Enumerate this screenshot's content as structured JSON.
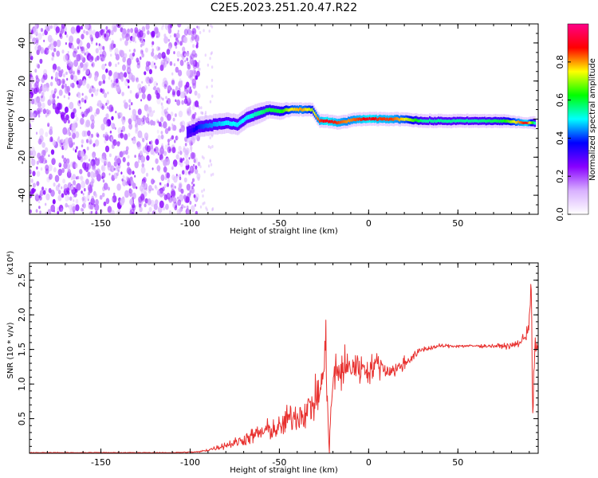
{
  "title": "C2E5.2023.251.20.47.R22",
  "chart_data": [
    {
      "type": "heatmap",
      "xlabel": "Height of straight line (km)",
      "ylabel": "Frequency (Hz)",
      "xlim": [
        -190,
        95
      ],
      "ylim": [
        -50,
        50
      ],
      "xticks": [
        -150,
        -100,
        -50,
        0,
        50
      ],
      "yticks": [
        -40,
        -20,
        0,
        20,
        40
      ],
      "colorbar": {
        "label": "Normalized spectral amplitude",
        "range": [
          0,
          1
        ],
        "ticks": [
          "0.0",
          "0.2",
          "0.4",
          "0.6",
          "0.8"
        ],
        "colormap": [
          "#ffffff",
          "#d8b0ff",
          "#8800ff",
          "#0000ff",
          "#00ffff",
          "#00ff00",
          "#ffff00",
          "#ff0000",
          "#ff0088"
        ]
      },
      "noise_region_x": [
        -190,
        -95
      ],
      "ridge": {
        "x": [
          -102,
          -95,
          -88,
          -80,
          -74,
          -68,
          -62,
          -56,
          -50,
          -44,
          -38,
          -32,
          -28,
          -24,
          -18,
          -12,
          -6,
          0,
          6,
          12,
          20,
          30,
          45,
          60,
          75,
          88,
          93
        ],
        "y": [
          -7,
          -4,
          -3,
          -2,
          -3,
          1,
          3,
          5,
          4,
          5,
          5,
          5,
          -1,
          -1,
          -2,
          -1,
          0,
          0,
          0,
          0,
          0,
          -1,
          -1,
          -1,
          -1,
          -2,
          -2
        ],
        "amp": [
          0.3,
          0.4,
          0.45,
          0.5,
          0.5,
          0.5,
          0.55,
          0.6,
          0.6,
          0.75,
          0.8,
          0.7,
          0.85,
          0.9,
          0.85,
          0.8,
          0.85,
          0.9,
          0.85,
          0.85,
          0.75,
          0.55,
          0.55,
          0.55,
          0.6,
          0.9,
          0.5
        ],
        "width": [
          3,
          3,
          3,
          3,
          3,
          3,
          3,
          2.5,
          2.5,
          2,
          2,
          2,
          2,
          2,
          2,
          2,
          2,
          2,
          2,
          2,
          2,
          2,
          2,
          2,
          2,
          1.6,
          2
        ]
      }
    },
    {
      "type": "line",
      "xlabel": "Height of straight line (km)",
      "ylabel": "SNR (10 * v/v)",
      "y_multiplier": "(x10⁴)",
      "xlim": [
        -190,
        95
      ],
      "ylim": [
        0,
        2.75
      ],
      "xticks": [
        -150,
        -100,
        -50,
        0,
        50
      ],
      "yticks": [
        0.5,
        1.0,
        1.5,
        2.0,
        2.5
      ],
      "series": [
        {
          "color": "#e8312f",
          "x": [
            -190,
            -140,
            -110,
            -95,
            -90,
            -85,
            -80,
            -75,
            -70,
            -65,
            -60,
            -55,
            -50,
            -45,
            -40,
            -35,
            -30,
            -26,
            -24,
            -22,
            -20,
            -15,
            -10,
            -5,
            0,
            5,
            10,
            15,
            20,
            25,
            30,
            40,
            50,
            60,
            70,
            80,
            85,
            88,
            90,
            91,
            92,
            93,
            94,
            95
          ],
          "y": [
            0.0,
            0.0,
            0.01,
            0.02,
            0.05,
            0.08,
            0.12,
            0.15,
            0.2,
            0.25,
            0.3,
            0.35,
            0.35,
            0.5,
            0.55,
            0.6,
            0.75,
            1.0,
            1.55,
            0.0,
            1.1,
            1.2,
            1.25,
            1.25,
            1.2,
            1.3,
            1.2,
            1.2,
            1.3,
            1.4,
            1.5,
            1.55,
            1.55,
            1.55,
            1.55,
            1.55,
            1.6,
            1.7,
            1.9,
            2.6,
            0.35,
            1.6,
            1.5,
            1.5
          ],
          "noise_amp": [
            0.002,
            0.004,
            0.006,
            0.01,
            0.02,
            0.03,
            0.05,
            0.06,
            0.08,
            0.1,
            0.12,
            0.14,
            0.15,
            0.18,
            0.2,
            0.22,
            0.25,
            0.3,
            0.3,
            0.3,
            0.3,
            0.25,
            0.22,
            0.2,
            0.16,
            0.14,
            0.12,
            0.1,
            0.08,
            0.05,
            0.04,
            0.025,
            0.02,
            0.02,
            0.025,
            0.035,
            0.05,
            0.08,
            0.15,
            0.2,
            0.2,
            0.15,
            0.1,
            0.08
          ]
        }
      ]
    }
  ]
}
